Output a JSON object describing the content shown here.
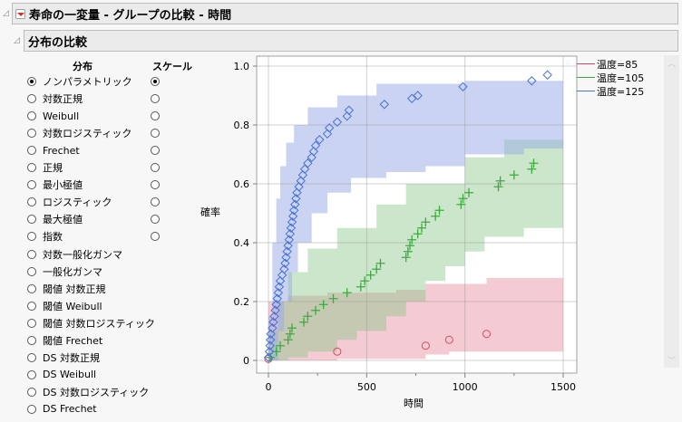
{
  "report": {
    "title": "寿命の一変量 - グループの比較 - 時間",
    "section_title": "分布の比較"
  },
  "selector": {
    "dist_header": "分布",
    "scale_header": "スケール",
    "distributions": [
      {
        "label": "ノンパラメトリック",
        "selected": true,
        "has_scale": true,
        "scale_selected": true
      },
      {
        "label": "対数正規",
        "selected": false,
        "has_scale": true,
        "scale_selected": false
      },
      {
        "label": "Weibull",
        "selected": false,
        "has_scale": true,
        "scale_selected": false
      },
      {
        "label": "対数ロジスティック",
        "selected": false,
        "has_scale": true,
        "scale_selected": false
      },
      {
        "label": "Frechet",
        "selected": false,
        "has_scale": true,
        "scale_selected": false
      },
      {
        "label": "正規",
        "selected": false,
        "has_scale": true,
        "scale_selected": false
      },
      {
        "label": "最小極値",
        "selected": false,
        "has_scale": true,
        "scale_selected": false
      },
      {
        "label": "ロジスティック",
        "selected": false,
        "has_scale": true,
        "scale_selected": false
      },
      {
        "label": "最大極値",
        "selected": false,
        "has_scale": true,
        "scale_selected": false
      },
      {
        "label": "指数",
        "selected": false,
        "has_scale": true,
        "scale_selected": false
      },
      {
        "label": "対数一般化ガンマ",
        "selected": false,
        "has_scale": false
      },
      {
        "label": "一般化ガンマ",
        "selected": false,
        "has_scale": false
      },
      {
        "label": "閾値 対数正規",
        "selected": false,
        "has_scale": false
      },
      {
        "label": "閾値 Weibull",
        "selected": false,
        "has_scale": false
      },
      {
        "label": "閾値 対数ロジスティック",
        "selected": false,
        "has_scale": false
      },
      {
        "label": "閾値 Frechet",
        "selected": false,
        "has_scale": false
      },
      {
        "label": "DS 対数正規",
        "selected": false,
        "has_scale": false
      },
      {
        "label": "DS Weibull",
        "selected": false,
        "has_scale": false
      },
      {
        "label": "DS 対数ロジスティック",
        "selected": false,
        "has_scale": false
      },
      {
        "label": "DS Frechet",
        "selected": false,
        "has_scale": false
      }
    ]
  },
  "legend": [
    {
      "label": "温度=85",
      "color": "#d9455f"
    },
    {
      "label": "温度=105",
      "color": "#3caa3c"
    },
    {
      "label": "温度=125",
      "color": "#4a72d8"
    }
  ],
  "chart_data": {
    "type": "scatter",
    "title": "",
    "xlabel": "時間",
    "ylabel": "確率",
    "xlim": [
      -50,
      1550
    ],
    "ylim": [
      -0.03,
      1.03
    ],
    "xticks": [
      0,
      500,
      1000,
      1500
    ],
    "yticks": [
      0,
      0.2,
      0.4,
      0.6,
      0.8,
      1.0
    ],
    "ytick_labels": [
      "0",
      "0.2",
      "0.4",
      "0.6",
      "0.8",
      "1.0"
    ],
    "grid": true,
    "legend_position": "right",
    "series": [
      {
        "name": "温度=85",
        "marker": "circle",
        "color": "#d9455f",
        "points": [
          [
            0,
            0.005
          ],
          [
            350,
            0.03
          ],
          [
            800,
            0.05
          ],
          [
            920,
            0.07
          ],
          [
            1110,
            0.09
          ]
        ],
        "band_color": "rgba(230,140,155,0.45)",
        "band_lower": [
          [
            0,
            0
          ],
          [
            350,
            0
          ],
          [
            350,
            0.005
          ],
          [
            800,
            0.005
          ],
          [
            800,
            0.02
          ],
          [
            920,
            0.02
          ],
          [
            920,
            0.03
          ],
          [
            1500,
            0.03
          ]
        ],
        "band_upper": [
          [
            0,
            0.2
          ],
          [
            100,
            0.2
          ],
          [
            100,
            0.22
          ],
          [
            300,
            0.22
          ],
          [
            300,
            0.23
          ],
          [
            650,
            0.23
          ],
          [
            650,
            0.24
          ],
          [
            800,
            0.24
          ],
          [
            800,
            0.26
          ],
          [
            1110,
            0.26
          ],
          [
            1110,
            0.28
          ],
          [
            1500,
            0.28
          ]
        ]
      },
      {
        "name": "温度=105",
        "marker": "plus",
        "color": "#3caa3c",
        "points": [
          [
            10,
            0.01
          ],
          [
            40,
            0.03
          ],
          [
            60,
            0.05
          ],
          [
            100,
            0.07
          ],
          [
            110,
            0.09
          ],
          [
            120,
            0.11
          ],
          [
            180,
            0.13
          ],
          [
            200,
            0.15
          ],
          [
            240,
            0.17
          ],
          [
            280,
            0.19
          ],
          [
            330,
            0.21
          ],
          [
            400,
            0.23
          ],
          [
            470,
            0.25
          ],
          [
            490,
            0.27
          ],
          [
            520,
            0.29
          ],
          [
            550,
            0.31
          ],
          [
            570,
            0.33
          ],
          [
            700,
            0.35
          ],
          [
            710,
            0.37
          ],
          [
            720,
            0.39
          ],
          [
            730,
            0.41
          ],
          [
            760,
            0.43
          ],
          [
            780,
            0.45
          ],
          [
            800,
            0.47
          ],
          [
            850,
            0.49
          ],
          [
            870,
            0.51
          ],
          [
            980,
            0.53
          ],
          [
            990,
            0.55
          ],
          [
            1020,
            0.57
          ],
          [
            1170,
            0.59
          ],
          [
            1180,
            0.61
          ],
          [
            1250,
            0.63
          ],
          [
            1340,
            0.65
          ],
          [
            1350,
            0.67
          ]
        ],
        "band_color": "rgba(140,200,140,0.45)",
        "band_lower": [
          [
            0,
            0
          ],
          [
            100,
            0
          ],
          [
            100,
            0.01
          ],
          [
            200,
            0.01
          ],
          [
            200,
            0.03
          ],
          [
            350,
            0.03
          ],
          [
            350,
            0.07
          ],
          [
            450,
            0.07
          ],
          [
            450,
            0.1
          ],
          [
            600,
            0.1
          ],
          [
            600,
            0.15
          ],
          [
            700,
            0.15
          ],
          [
            700,
            0.2
          ],
          [
            800,
            0.2
          ],
          [
            800,
            0.27
          ],
          [
            900,
            0.27
          ],
          [
            900,
            0.32
          ],
          [
            1000,
            0.32
          ],
          [
            1000,
            0.37
          ],
          [
            1100,
            0.37
          ],
          [
            1100,
            0.42
          ],
          [
            1300,
            0.42
          ],
          [
            1300,
            0.45
          ],
          [
            1500,
            0.45
          ]
        ],
        "band_upper": [
          [
            0,
            0.1
          ],
          [
            50,
            0.1
          ],
          [
            50,
            0.2
          ],
          [
            100,
            0.2
          ],
          [
            100,
            0.3
          ],
          [
            200,
            0.3
          ],
          [
            200,
            0.38
          ],
          [
            350,
            0.38
          ],
          [
            350,
            0.45
          ],
          [
            550,
            0.45
          ],
          [
            550,
            0.53
          ],
          [
            700,
            0.53
          ],
          [
            700,
            0.6
          ],
          [
            1000,
            0.6
          ],
          [
            1000,
            0.69
          ],
          [
            1200,
            0.69
          ],
          [
            1200,
            0.75
          ],
          [
            1500,
            0.75
          ]
        ]
      },
      {
        "name": "温度=125",
        "marker": "diamond",
        "color": "#4a72d8",
        "points": [
          [
            0,
            0.01
          ],
          [
            5,
            0.03
          ],
          [
            8,
            0.05
          ],
          [
            10,
            0.07
          ],
          [
            12,
            0.09
          ],
          [
            20,
            0.11
          ],
          [
            25,
            0.13
          ],
          [
            30,
            0.15
          ],
          [
            35,
            0.17
          ],
          [
            40,
            0.19
          ],
          [
            45,
            0.21
          ],
          [
            50,
            0.23
          ],
          [
            55,
            0.25
          ],
          [
            60,
            0.27
          ],
          [
            70,
            0.29
          ],
          [
            80,
            0.31
          ],
          [
            85,
            0.33
          ],
          [
            90,
            0.35
          ],
          [
            95,
            0.37
          ],
          [
            100,
            0.39
          ],
          [
            105,
            0.41
          ],
          [
            110,
            0.43
          ],
          [
            115,
            0.45
          ],
          [
            120,
            0.47
          ],
          [
            125,
            0.49
          ],
          [
            130,
            0.51
          ],
          [
            135,
            0.53
          ],
          [
            140,
            0.55
          ],
          [
            145,
            0.57
          ],
          [
            155,
            0.59
          ],
          [
            165,
            0.61
          ],
          [
            175,
            0.63
          ],
          [
            185,
            0.65
          ],
          [
            200,
            0.67
          ],
          [
            220,
            0.69
          ],
          [
            230,
            0.71
          ],
          [
            240,
            0.73
          ],
          [
            260,
            0.75
          ],
          [
            300,
            0.77
          ],
          [
            310,
            0.79
          ],
          [
            350,
            0.81
          ],
          [
            400,
            0.83
          ],
          [
            410,
            0.85
          ],
          [
            590,
            0.87
          ],
          [
            730,
            0.89
          ],
          [
            760,
            0.9
          ],
          [
            990,
            0.93
          ],
          [
            1340,
            0.95
          ],
          [
            1420,
            0.97
          ]
        ],
        "band_color": "rgba(150,170,230,0.5)",
        "band_lower": [
          [
            0,
            0
          ],
          [
            50,
            0
          ],
          [
            50,
            0.1
          ],
          [
            80,
            0.1
          ],
          [
            80,
            0.2
          ],
          [
            120,
            0.2
          ],
          [
            120,
            0.3
          ],
          [
            150,
            0.3
          ],
          [
            150,
            0.4
          ],
          [
            220,
            0.4
          ],
          [
            220,
            0.5
          ],
          [
            300,
            0.5
          ],
          [
            300,
            0.57
          ],
          [
            420,
            0.57
          ],
          [
            420,
            0.62
          ],
          [
            600,
            0.62
          ],
          [
            600,
            0.64
          ],
          [
            800,
            0.64
          ],
          [
            800,
            0.66
          ],
          [
            1000,
            0.66
          ],
          [
            1000,
            0.7
          ],
          [
            1300,
            0.7
          ],
          [
            1300,
            0.72
          ],
          [
            1500,
            0.72
          ]
        ],
        "band_upper": [
          [
            0,
            0.15
          ],
          [
            20,
            0.15
          ],
          [
            20,
            0.4
          ],
          [
            40,
            0.4
          ],
          [
            40,
            0.55
          ],
          [
            60,
            0.55
          ],
          [
            60,
            0.66
          ],
          [
            90,
            0.66
          ],
          [
            90,
            0.74
          ],
          [
            130,
            0.74
          ],
          [
            130,
            0.8
          ],
          [
            200,
            0.8
          ],
          [
            200,
            0.86
          ],
          [
            350,
            0.86
          ],
          [
            350,
            0.9
          ],
          [
            550,
            0.9
          ],
          [
            550,
            0.94
          ],
          [
            1000,
            0.94
          ],
          [
            1000,
            0.95
          ],
          [
            1500,
            0.95
          ]
        ]
      }
    ]
  }
}
